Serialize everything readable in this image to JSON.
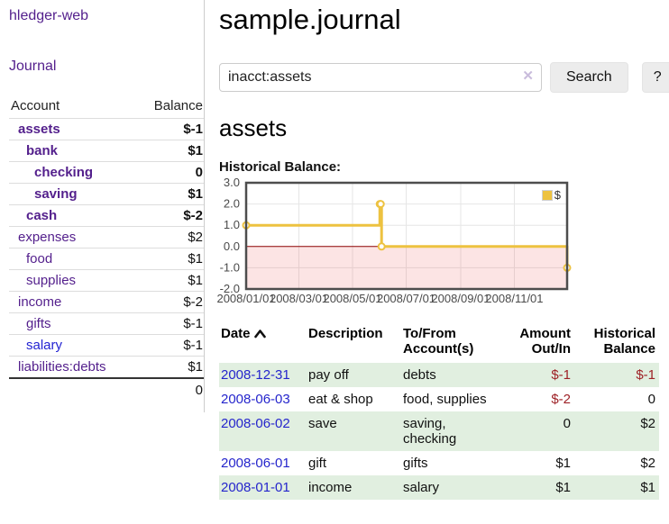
{
  "app": {
    "title": "hledger-web"
  },
  "sidebar": {
    "nav": {
      "journal_label": "Journal"
    },
    "accounts_table": {
      "headers": {
        "account": "Account",
        "balance": "Balance"
      },
      "rows": [
        {
          "name": "assets",
          "level": 1,
          "bold": true,
          "balance": "$-1",
          "negative": true
        },
        {
          "name": "bank",
          "level": 2,
          "bold": true,
          "balance": "$1",
          "negative": false
        },
        {
          "name": "checking",
          "level": 3,
          "bold": true,
          "balance": "0",
          "negative": false
        },
        {
          "name": "saving",
          "level": 3,
          "bold": true,
          "balance": "$1",
          "negative": false
        },
        {
          "name": "cash",
          "level": 2,
          "bold": true,
          "balance": "$-2",
          "negative": true
        },
        {
          "name": "expenses",
          "level": 1,
          "bold": false,
          "balance": "$2",
          "negative": false
        },
        {
          "name": "food",
          "level": 2,
          "bold": false,
          "balance": "$1",
          "negative": false
        },
        {
          "name": "supplies",
          "level": 2,
          "bold": false,
          "balance": "$1",
          "negative": false
        },
        {
          "name": "income",
          "level": 1,
          "bold": false,
          "balance": "$-2",
          "negative": true
        },
        {
          "name": "gifts",
          "level": 2,
          "bold": false,
          "balance": "$-1",
          "negative": true
        },
        {
          "name": "salary",
          "level": 2,
          "bold": false,
          "balance": "$-1",
          "negative": true,
          "unvisited": true
        },
        {
          "name": "liabilities:debts",
          "level": 1,
          "bold": false,
          "balance": "$1",
          "negative": false
        }
      ],
      "total": "0"
    }
  },
  "main": {
    "title": "sample.journal",
    "search": {
      "value": "inacct:assets",
      "clear_icon": "✕",
      "button_label": "Search",
      "help_label": "?"
    },
    "account_heading": "assets",
    "chart_label": "Historical Balance:"
  },
  "chart_data": {
    "type": "line",
    "style": "step",
    "title": "Historical Balance",
    "x_range": [
      "2008-01-01",
      "2008-12-31"
    ],
    "ylim": [
      -2,
      3
    ],
    "y_ticks": [
      3.0,
      2.0,
      1.0,
      0.0,
      -1.0,
      -2.0
    ],
    "x_ticks": [
      "2008/01/01",
      "2008/03/01",
      "2008/05/01",
      "2008/07/01",
      "2008/09/01",
      "2008/11/01"
    ],
    "grid": true,
    "legend": {
      "label": "$",
      "position": "top-right"
    },
    "series": [
      {
        "name": "$",
        "color": "#edc240",
        "points": [
          {
            "date": "2008-01-01",
            "value": 1
          },
          {
            "date": "2008-06-01",
            "value": 2
          },
          {
            "date": "2008-06-02",
            "value": 2
          },
          {
            "date": "2008-06-03",
            "value": 0
          },
          {
            "date": "2008-12-31",
            "value": -1
          }
        ]
      }
    ],
    "colors": {
      "plot_border": "#4d4d4d",
      "gridline": "#e6e6e6",
      "negative_region": "rgba(230,30,30,0.12)",
      "zero_line": "#8b0000",
      "tick_text": "#4a4a4a"
    }
  },
  "register": {
    "headers": {
      "date": "Date",
      "description": "Description",
      "accounts": "To/From Account(s)",
      "amount": "Amount Out/In",
      "balance": "Historical Balance"
    },
    "rows": [
      {
        "date": "2008-12-31",
        "description": "pay off",
        "accounts": "debts",
        "amount": "$-1",
        "balance": "$-1"
      },
      {
        "date": "2008-06-03",
        "description": "eat & shop",
        "accounts": "food, supplies",
        "amount": "$-2",
        "balance": "0"
      },
      {
        "date": "2008-06-02",
        "description": "save",
        "accounts": "saving, checking",
        "amount": "0",
        "balance": "$2"
      },
      {
        "date": "2008-06-01",
        "description": "gift",
        "accounts": "gifts",
        "amount": "$1",
        "balance": "$2"
      },
      {
        "date": "2008-01-01",
        "description": "income",
        "accounts": "salary",
        "amount": "$1",
        "balance": "$1"
      }
    ]
  },
  "colors": {
    "link_purple": "#531f8c",
    "link_blue": "#2323d2",
    "negative_strong": "#9e2126",
    "negative_muted": "#bb7a7f",
    "row_shade_green": "#e1efe0",
    "series_gold": "#edc240",
    "button_bg": "#ececec"
  }
}
